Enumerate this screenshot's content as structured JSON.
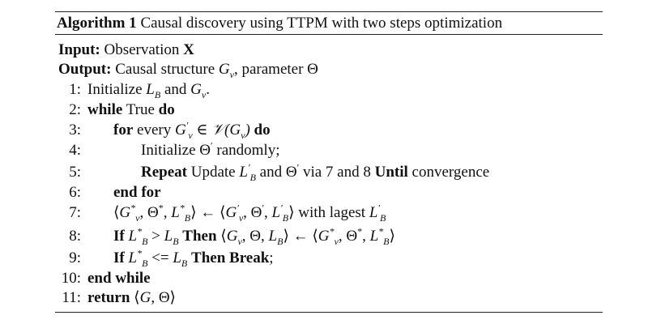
{
  "algorithm": {
    "label": "Algorithm 1",
    "title": "Causal discovery using TTPM with two steps optimization",
    "input_label": "Input:",
    "input_text": "Observation",
    "input_symbol": "X",
    "output_label": "Output:",
    "output_text": "Causal structure",
    "output_symbol": "Gv",
    "output_suffix": ", parameter Θ",
    "lines": [
      {
        "num": "1:",
        "text": "Initialize L_B and G_v."
      },
      {
        "num": "2:",
        "text": "while True do"
      },
      {
        "num": "3:",
        "text": "for every G'_v ∈ V(G_v) do"
      },
      {
        "num": "4:",
        "text": "Initialize Θ' randomly;"
      },
      {
        "num": "5:",
        "text": "Repeat Update L'_B and Θ' via 7 and 8 Until convergence"
      },
      {
        "num": "6:",
        "text": "end for"
      },
      {
        "num": "7:",
        "text": "⟨G*_v, Θ*, L*_B⟩ ← ⟨G'_v, Θ', L'_B⟩ with lagest L'_B"
      },
      {
        "num": "8:",
        "text": "If L*_B > L_B Then ⟨G_v, Θ, L_B⟩ ← ⟨G*_v, Θ*, L*_B⟩"
      },
      {
        "num": "9:",
        "text": "If L*_B <= L_B Then Break;"
      },
      {
        "num": "10:",
        "text": "end while"
      },
      {
        "num": "11:",
        "text": "return ⟨G, Θ⟩"
      }
    ],
    "keywords": {
      "while": "while",
      "do": "do",
      "for": "for every",
      "end_for": "end for",
      "repeat": "Repeat",
      "until": "Until",
      "if": "If",
      "then": "Then",
      "break": "Break",
      "end_while": "end while",
      "return": "return"
    }
  }
}
